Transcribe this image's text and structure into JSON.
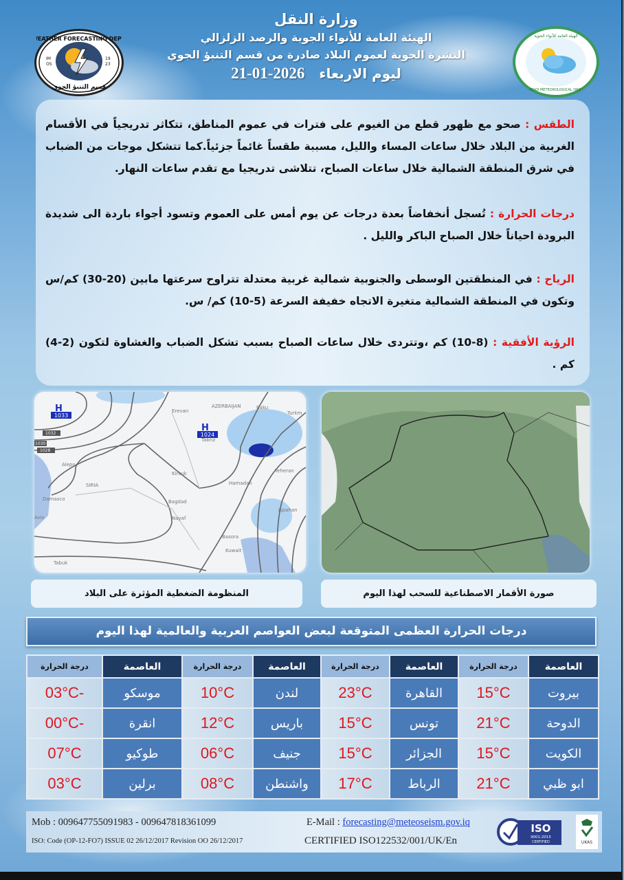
{
  "header": {
    "ministry": "وزارة النقل",
    "authority": "الهيئة العامة للأنواء الجوية والرصد الزلزالي",
    "bulletin": "النشرة الجوية لعموم البلاد صادرة من قسم التنبؤ الجوي",
    "day_label": "ليوم الاربعاء",
    "date": "2026-01-21"
  },
  "logos": {
    "left": {
      "arc_text": "WEATHER FORECASTING DEPT.",
      "bottom_text": "قسم التنبؤ الجوي",
      "left_mark": "IM OS",
      "right_mark": "19 23"
    },
    "right": {
      "arc_text_ar": "الهيئة العامة للأنواء الجوية والرصد الزلزالي",
      "arc_text_en": "IRAQI METEOROLOGICAL ORGANIZATION & SEISMOLOGY"
    }
  },
  "forecast": {
    "weather": {
      "label": "الطقس :",
      "text": " صحو مع ظهور قطع من الغيوم على فترات في عموم المناطق، تتكاثر تدريجياً في الأقسام الغربية من البلاد خلال ساعات المساء والليل، مسببة طقساً غائماً جزئياً.كما تتشكل موجات من الضباب في شرق المنطقة الشمالية خلال ساعات الصباح، تتلاشى تدريجيا مع تقدم ساعات النهار."
    },
    "temperature": {
      "label": "درجات الحرارة :",
      "text": " تُسجل أنخفاضاً بعدة درجات عن يوم أمس على العموم وتسود أجواء باردة الى شديدة البرودة احياناً خلال الصباح الباكر والليل ."
    },
    "winds": {
      "label": "الرياح :",
      "text": " في المنطقتين الوسطى والجنوبية شمالية غربية معتدلة تتراوح سرعتها مابين (20-30) كم/س وتكون في المنطقة الشمالية متغيرة الاتجاه خفيفة السرعة (5-10) كم/ س."
    },
    "visibility": {
      "label": "الرؤية الأفقية :",
      "text": " (8-10) كم ،وتتردى خلال ساعات الصباح بسبب تشكل الضباب والغشاوة لتكون (2-4) كم ."
    }
  },
  "pressure_map": {
    "caption": "المنظومة الضغطية المؤثرة على البلاد",
    "highs": [
      {
        "symbol": "H",
        "value": "1033"
      },
      {
        "symbol": "H",
        "value": "1024"
      }
    ],
    "isobar_labels": [
      "1032",
      "1030",
      "1028"
    ],
    "places": [
      "Erevan",
      "AZERBAIJAN",
      "Baku",
      "Turkm",
      "Tabriz",
      "Alepo",
      "SIRIA",
      "Kirkuk",
      "Hamadan",
      "Teheran",
      "Damasco",
      "Bagdad",
      "Nayaf",
      "Ispahan",
      "Basora",
      "Kuwait",
      "Tabuk",
      "Aviv"
    ]
  },
  "satellite": {
    "caption": "صورة الأقمار الاصطناعية للسحب لهذا اليوم"
  },
  "capitals": {
    "title": "درجات الحرارة العظمى المتوقعة لبعض العواصم العربية والعالمية لهذا اليوم",
    "col_capital": "العاصمة",
    "col_temp": "درجة الحرارة",
    "rows": [
      [
        {
          "city": "بيروت",
          "temp": "15°C"
        },
        {
          "city": "القاهرة",
          "temp": "23°C"
        },
        {
          "city": "لندن",
          "temp": "10°C"
        },
        {
          "city": "موسكو",
          "temp": "-03°C"
        }
      ],
      [
        {
          "city": "الدوحة",
          "temp": "21°C"
        },
        {
          "city": "تونس",
          "temp": "15°C"
        },
        {
          "city": "باريس",
          "temp": "12°C"
        },
        {
          "city": "انقرة",
          "temp": "-00°C"
        }
      ],
      [
        {
          "city": "الكويت",
          "temp": "15°C"
        },
        {
          "city": "الجزائر",
          "temp": "15°C"
        },
        {
          "city": "جنيف",
          "temp": "06°C"
        },
        {
          "city": "طوكيو",
          "temp": "07°C"
        }
      ],
      [
        {
          "city": "ابو ظبي",
          "temp": "21°C"
        },
        {
          "city": "الرباط",
          "temp": "17°C"
        },
        {
          "city": "واشنطن",
          "temp": "08°C"
        },
        {
          "city": "برلين",
          "temp": "03°C"
        }
      ]
    ]
  },
  "footer": {
    "mob_label": "Mob :",
    "mob": "009647755091983 - 009647818361099",
    "email_label": "E-Mail :",
    "email": "forecasting@meteoseism.gov.iq",
    "iso_code": "ISO: Code (OP-12-FO7)   ISSUE 02   26/12/2017 Revision   OO   26/12/2017",
    "certified": "CERTIFIED ISO122532/001/UK/En",
    "iso_badge": {
      "title": "ISO",
      "standard": "9001:2015",
      "status": "CERTIFIED"
    },
    "ukas": "UKAS"
  },
  "colors": {
    "accent_red": "#e01b1b",
    "header_navy": "#1f3a60",
    "capital_cell": "#4a7bb9",
    "temp_red": "#e0161c"
  }
}
